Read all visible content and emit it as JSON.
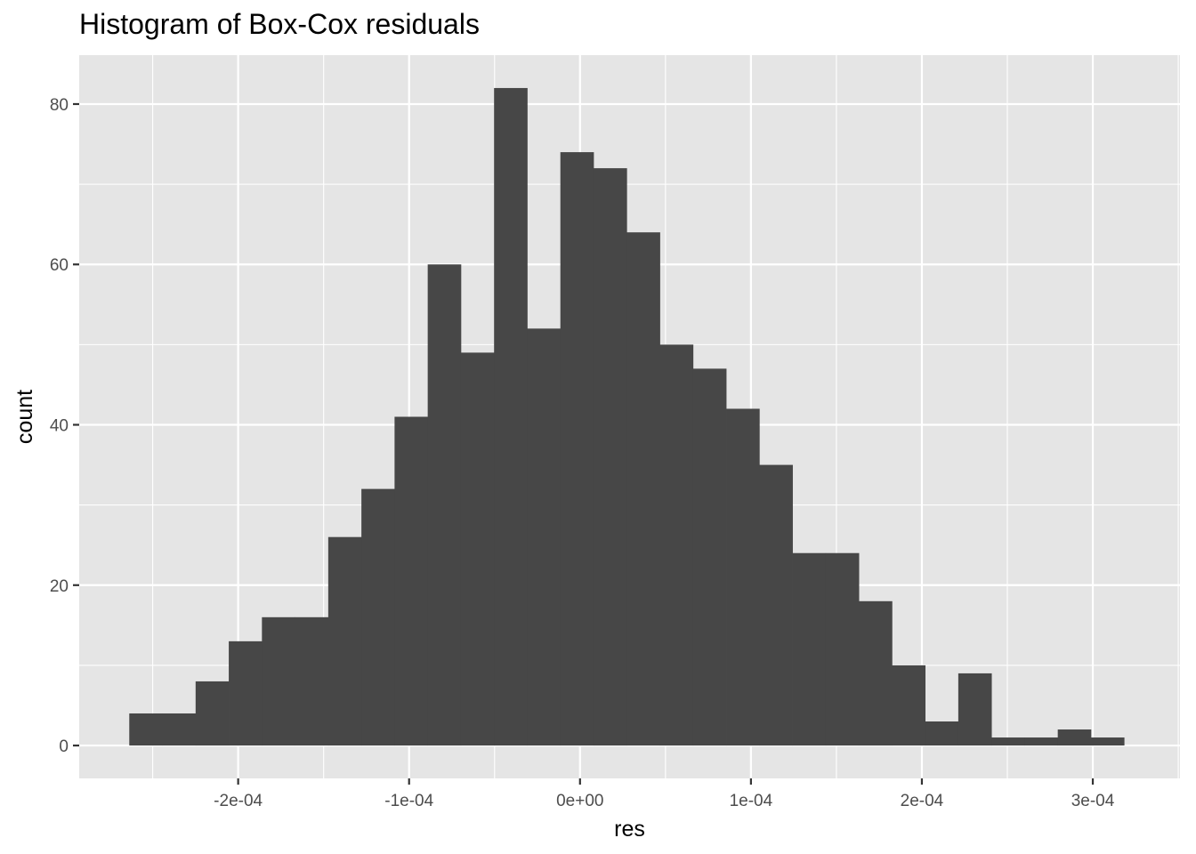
{
  "chart_data": {
    "type": "bar",
    "title": "Histogram of Box-Cox residuals",
    "xlabel": "res",
    "ylabel": "count",
    "bin_width": 1.94e-05,
    "bin_start": -0.0002637,
    "counts": [
      4,
      4,
      8,
      13,
      16,
      16,
      26,
      32,
      41,
      60,
      49,
      82,
      52,
      74,
      72,
      64,
      50,
      47,
      42,
      35,
      24,
      24,
      18,
      10,
      3,
      9,
      1,
      1,
      2,
      1
    ],
    "xlim": [
      -0.000293,
      0.000351
    ],
    "ylim": [
      -4.1,
      86.1
    ],
    "x_ticks": [
      {
        "value": -0.0002,
        "label": "-2e-04"
      },
      {
        "value": -0.0001,
        "label": "-1e-04"
      },
      {
        "value": 0,
        "label": "0e+00"
      },
      {
        "value": 0.0001,
        "label": "1e-04"
      },
      {
        "value": 0.0002,
        "label": "2e-04"
      },
      {
        "value": 0.0003,
        "label": "3e-04"
      }
    ],
    "y_ticks": [
      {
        "value": 0,
        "label": "0"
      },
      {
        "value": 20,
        "label": "20"
      },
      {
        "value": 40,
        "label": "40"
      },
      {
        "value": 60,
        "label": "60"
      },
      {
        "value": 80,
        "label": "80"
      }
    ],
    "bar_color": "#474747",
    "panel_color": "#e5e5e5",
    "grid": true,
    "legend": "none"
  }
}
